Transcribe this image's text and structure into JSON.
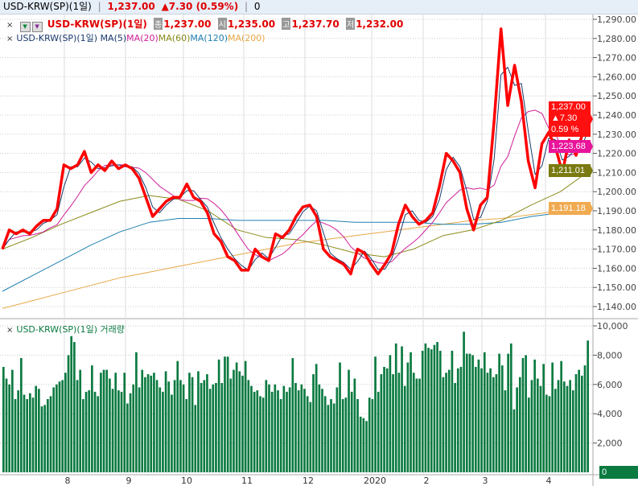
{
  "header": {
    "symbol": "USD-KRW(SP)(1일)",
    "price": "1,237.00",
    "change": "▲7.30 (0.59%)",
    "volume": "0"
  },
  "legend_price": {
    "close_icon": "close-icon",
    "title": "USD-KRW(SP)(1일)",
    "close_label": "종",
    "close": "1,237.00",
    "open_label": "시",
    "open": "1,235.00",
    "high_label": "고",
    "high": "1,237.70",
    "low_label": "저",
    "low": "1,232.00"
  },
  "legend_ma": {
    "prefix": "USD-KRW(SP)(1일)",
    "ma5": "MA(5)",
    "ma20": "MA(20)",
    "ma60": "MA(60)",
    "ma120": "MA(120)",
    "ma200": "MA(200)"
  },
  "legend_volume": {
    "title": "USD-KRW(SP)(1일) 거래량"
  },
  "colors": {
    "price": "#ff0000",
    "ma5": "#1a3a6e",
    "ma20": "#d0209a",
    "ma60": "#8a8a1a",
    "ma120": "#2080b0",
    "ma200": "#e8a848",
    "volume": "#0a7a40",
    "up": "#e00000"
  },
  "tags": {
    "last": "1,237.00",
    "chg": "▲7.30",
    "pct": "0.59 %",
    "ma20": "1,223.68",
    "ma60": "1,211.01",
    "ma200": "1,191.18",
    "vol0": "0"
  },
  "chart_data": [
    {
      "type": "line",
      "ylim": [
        1135,
        1295
      ],
      "grid": true,
      "y_ticks": [
        "1,290.00",
        "1,280.00",
        "1,270.00",
        "1,260.00",
        "1,250.00",
        "1,240.00",
        "1,230.00",
        "1,220.00",
        "1,210.00",
        "1,200.00",
        "1,190.00",
        "1,180.00",
        "1,170.00",
        "1,160.00",
        "1,150.00",
        "1,140.00"
      ],
      "x_ticks": [
        "8",
        "9",
        "10",
        "11",
        "12",
        "2020",
        "2",
        "3",
        "4"
      ],
      "close": [
        1170,
        1180,
        1178,
        1180,
        1178,
        1182,
        1185,
        1185,
        1191,
        1214,
        1212,
        1214,
        1221,
        1210,
        1214,
        1211,
        1216,
        1212,
        1214,
        1212,
        1207,
        1197,
        1187,
        1191,
        1195,
        1197,
        1197,
        1204,
        1197,
        1195,
        1189,
        1178,
        1174,
        1166,
        1164,
        1159,
        1159,
        1170,
        1166,
        1164,
        1178,
        1176,
        1180,
        1187,
        1192,
        1193,
        1187,
        1170,
        1166,
        1164,
        1162,
        1157,
        1170,
        1168,
        1162,
        1157,
        1162,
        1168,
        1183,
        1193,
        1187,
        1183,
        1185,
        1189,
        1203,
        1220,
        1216,
        1210,
        1191,
        1180,
        1193,
        1197,
        1237,
        1285,
        1245,
        1266,
        1247,
        1216,
        1202,
        1225,
        1231,
        1223,
        1210,
        1227,
        1219,
        1231,
        1237
      ],
      "ma60": [
        1170,
        1176,
        1183,
        1189,
        1195,
        1198,
        1196,
        1190,
        1180,
        1176,
        1175,
        1172,
        1168,
        1166,
        1170,
        1177,
        1180,
        1185,
        1193,
        1200,
        1211
      ],
      "ma120": [
        1148,
        1156,
        1164,
        1172,
        1179,
        1184,
        1186,
        1186,
        1185,
        1185,
        1185,
        1185,
        1184,
        1184,
        1184,
        1183,
        1183,
        1184,
        1187,
        1189,
        1191
      ],
      "ma200": [
        1139,
        1143,
        1147,
        1151,
        1155,
        1158,
        1161,
        1164,
        1167,
        1170,
        1173,
        1175,
        1177,
        1179,
        1181,
        1183,
        1185,
        1186,
        1188,
        1190,
        1191
      ]
    },
    {
      "type": "bar",
      "ylim": [
        0,
        10000
      ],
      "grid": true,
      "y_ticks": [
        "10,000",
        "8,000",
        "6,000",
        "4,000",
        "2,000"
      ],
      "values": [
        7200,
        6400,
        6000,
        7000,
        5000,
        5600,
        7800,
        5300,
        5000,
        5400,
        5100,
        5900,
        5700,
        4500,
        4600,
        5000,
        5200,
        5800,
        6000,
        6200,
        6300,
        6800,
        8000,
        9300,
        8900,
        6300,
        7000,
        5000,
        5500,
        5600,
        7300,
        5500,
        5200,
        6800,
        7000,
        7000,
        6400,
        5700,
        6800,
        5600,
        5500,
        6800,
        4700,
        5400,
        6000,
        8200,
        5800,
        7000,
        6500,
        6700,
        6600,
        6800,
        6300,
        5800,
        5500,
        6900,
        6200,
        5300,
        6300,
        7600,
        6300,
        6000,
        5000,
        6800,
        6500,
        4600,
        6900,
        6100,
        6300,
        6700,
        5700,
        6000,
        6100,
        7700,
        6100,
        7900,
        7900,
        6400,
        7000,
        7500,
        6900,
        6600,
        7600,
        6300,
        5900,
        5500,
        5600,
        5200,
        5100,
        6300,
        6000,
        5500,
        6000,
        5600,
        5000,
        5900,
        5500,
        5800,
        7800,
        6100,
        5600,
        6000,
        5700,
        5200,
        4800,
        6700,
        7400,
        6000,
        5700,
        5200,
        4600,
        5000,
        4700,
        5800,
        7500,
        5000,
        5100,
        7000,
        5500,
        6400,
        5000,
        3800,
        3700,
        3500,
        5100,
        5000,
        7900,
        5500,
        6700,
        7200,
        7100,
        8000,
        6700,
        8800,
        6800,
        8600,
        5900,
        7500,
        8200,
        6800,
        6400,
        6400,
        8300,
        8800,
        8500,
        8400,
        8700,
        8900,
        8300,
        6500,
        6800,
        7000,
        8300,
        6100,
        7100,
        7200,
        9600,
        8100,
        8100,
        8000,
        7200,
        7700,
        7100,
        8200,
        6800,
        7100,
        6500,
        6700,
        8100,
        7300,
        5600,
        8100,
        8800,
        4300,
        5800,
        6500,
        7800,
        8000,
        5100,
        6300,
        7700,
        6400,
        5900,
        7400,
        5300,
        5200,
        7500,
        5700,
        6300,
        7600,
        6200,
        5900,
        6300,
        5600,
        6700,
        7000,
        6600,
        7300,
        9000
      ]
    }
  ]
}
